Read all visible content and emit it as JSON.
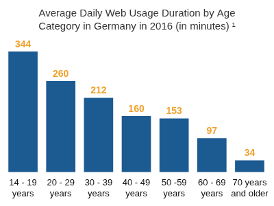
{
  "chart_data": {
    "type": "bar",
    "title": [
      "Average Daily Web Usage Duration by Age",
      "Category in Germany in 2016 (in minutes) ¹"
    ],
    "categories": [
      [
        "14 - 19",
        "years"
      ],
      [
        "20 - 29",
        "years"
      ],
      [
        "30 - 39",
        "years"
      ],
      [
        "40 - 49",
        "years"
      ],
      [
        "50 -59",
        "years"
      ],
      [
        "60 - 69",
        "years"
      ],
      [
        "70 years",
        "and older"
      ]
    ],
    "values": [
      344,
      260,
      212,
      160,
      153,
      97,
      34
    ],
    "color": "#1c5a92",
    "ylim": [
      0,
      344
    ],
    "grid": false,
    "data_labels": true,
    "tick_labels": "x"
  }
}
